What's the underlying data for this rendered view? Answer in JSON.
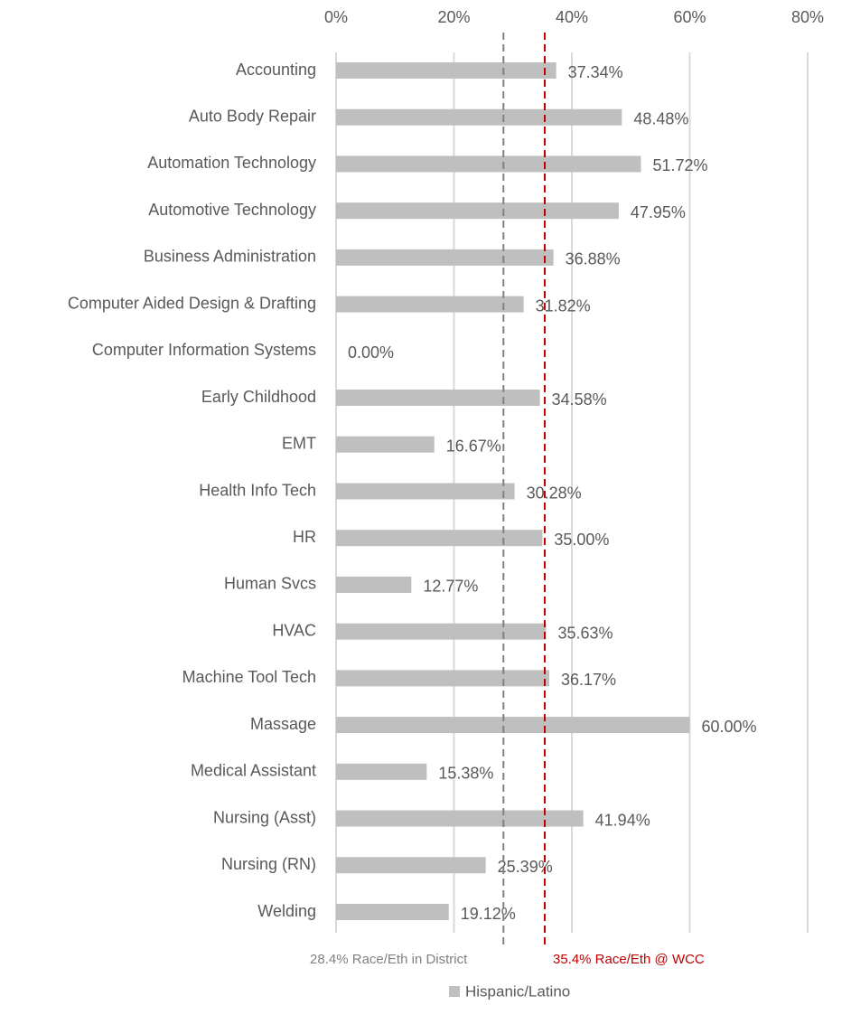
{
  "chart_data": {
    "type": "bar",
    "orientation": "horizontal",
    "categories": [
      "Accounting",
      "Auto Body Repair",
      "Automation Technology",
      "Automotive Technology",
      "Business Administration",
      "Computer Aided Design & Drafting",
      "Computer Information Systems",
      "Early Childhood",
      "EMT",
      "Health Info Tech",
      "HR",
      "Human Svcs",
      "HVAC",
      "Machine Tool Tech",
      "Massage",
      "Medical Assistant",
      "Nursing (Asst)",
      "Nursing (RN)",
      "Welding"
    ],
    "series": [
      {
        "name": "Hispanic/Latino",
        "color": "#bfbfbf",
        "values": [
          37.34,
          48.48,
          51.72,
          47.95,
          36.88,
          31.82,
          0.0,
          34.58,
          16.67,
          30.28,
          35.0,
          12.77,
          35.63,
          36.17,
          60.0,
          15.38,
          41.94,
          25.39,
          19.12
        ],
        "value_labels": [
          "37.34%",
          "48.48%",
          "51.72%",
          "47.95%",
          "36.88%",
          "31.82%",
          "0.00%",
          "34.58%",
          "16.67%",
          "30.28%",
          "35.00%",
          "12.77%",
          "35.63%",
          "36.17%",
          "60.00%",
          "15.38%",
          "41.94%",
          "25.39%",
          "19.12%"
        ]
      }
    ],
    "xlim": [
      0,
      80
    ],
    "xticks": [
      {
        "value": 0,
        "label": "0%"
      },
      {
        "value": 20,
        "label": "20%"
      },
      {
        "value": 40,
        "label": "40%"
      },
      {
        "value": 60,
        "label": "60%"
      },
      {
        "value": 80,
        "label": "80%"
      }
    ],
    "grid": true,
    "reference_lines": [
      {
        "value": 28.4,
        "label": "28.4% Race/Eth in District",
        "color": "#808080"
      },
      {
        "value": 35.4,
        "label": "35.4% Race/Eth @ WCC",
        "color": "#c00000"
      }
    ],
    "legend": "bottom"
  }
}
